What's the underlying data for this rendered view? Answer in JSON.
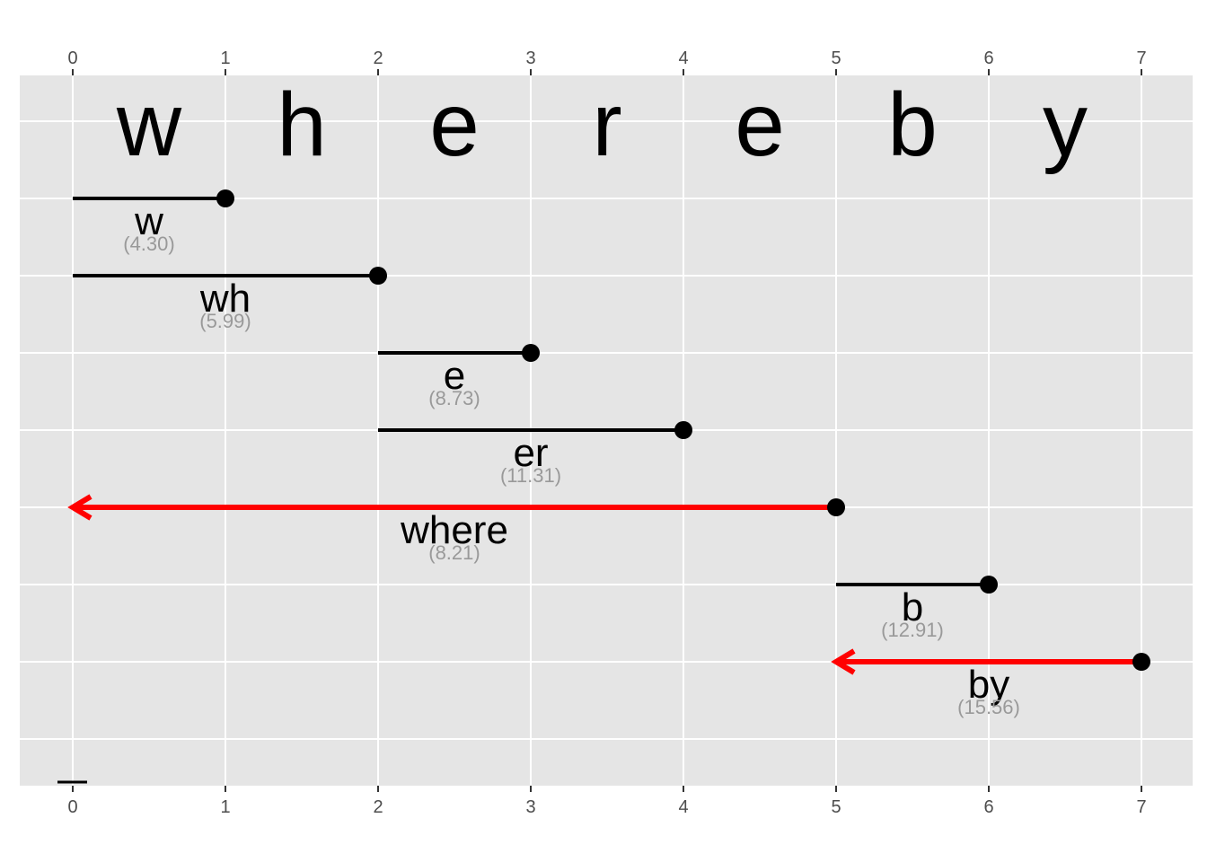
{
  "chart_data": {
    "type": "segment",
    "word": "whereby",
    "letters": [
      "w",
      "h",
      "e",
      "r",
      "e",
      "b",
      "y"
    ],
    "x_ticks": [
      0,
      1,
      2,
      3,
      4,
      5,
      6,
      7
    ],
    "xlim": [
      0,
      7
    ],
    "grid": true,
    "segments": [
      {
        "label": "w",
        "score": "(4.30)",
        "start": 0,
        "end": 1,
        "highlight": false,
        "arrow_direction": "none"
      },
      {
        "label": "wh",
        "score": "(5.99)",
        "start": 0,
        "end": 2,
        "highlight": false,
        "arrow_direction": "none"
      },
      {
        "label": "e",
        "score": "(8.73)",
        "start": 2,
        "end": 3,
        "highlight": false,
        "arrow_direction": "none"
      },
      {
        "label": "er",
        "score": "(11.31)",
        "start": 2,
        "end": 4,
        "highlight": false,
        "arrow_direction": "none"
      },
      {
        "label": "where",
        "score": "(8.21)",
        "start": 0,
        "end": 5,
        "highlight": true,
        "arrow_direction": "left"
      },
      {
        "label": "b",
        "score": "(12.91)",
        "start": 5,
        "end": 6,
        "highlight": false,
        "arrow_direction": "none"
      },
      {
        "label": "by",
        "score": "(15.56)",
        "start": 5,
        "end": 7,
        "highlight": true,
        "arrow_direction": "left"
      }
    ],
    "colors": {
      "panel_background": "#e5e5e5",
      "grid": "#ffffff",
      "segment": "#000000",
      "highlight": "#ff0000",
      "score_text": "#999999",
      "tick_text": "#4d4d4d"
    }
  }
}
